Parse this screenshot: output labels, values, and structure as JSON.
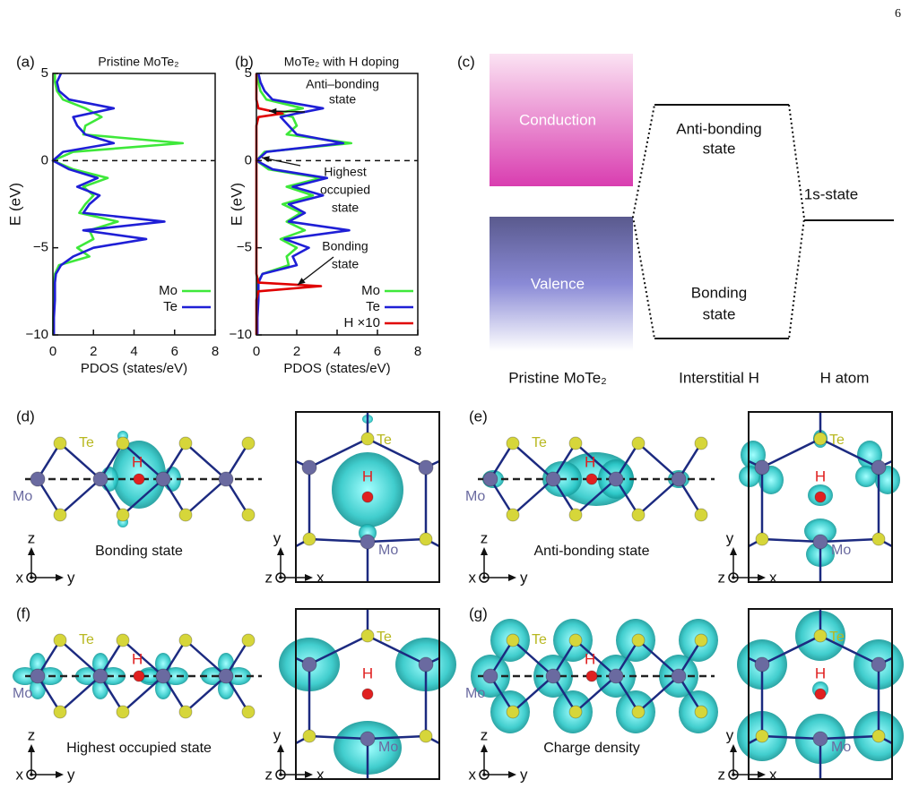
{
  "page_number": "6",
  "chart_data": [
    {
      "type": "line",
      "panel_label": "(a)",
      "title": "Pristine MoTe₂",
      "xlabel": "PDOS (states/eV)",
      "ylabel": "E (eV)",
      "y": [
        -10,
        -9,
        -8,
        -7,
        -6.5,
        -6,
        -5.5,
        -5,
        -4.5,
        -4,
        -3.5,
        -3,
        -2.5,
        -2,
        -1.5,
        -1,
        -0.5,
        0,
        0.5,
        1,
        1.5,
        2,
        2.5,
        3,
        3.5,
        4,
        4.5,
        5
      ],
      "series": [
        {
          "name": "Mo",
          "color": "#3ee83a",
          "values": [
            0.02,
            0.02,
            0.05,
            0.05,
            0.1,
            0.3,
            1.8,
            1.2,
            2.0,
            1.8,
            3.2,
            1.3,
            1.6,
            2.0,
            1.5,
            2.7,
            1.0,
            0,
            1.0,
            6.4,
            1.5,
            1.6,
            2.4,
            1.6,
            0.5,
            0.2,
            0.1,
            0.1
          ]
        },
        {
          "name": "Te",
          "color": "#1f1fd6",
          "values": [
            0.05,
            0.05,
            0.1,
            0.1,
            0.15,
            0.4,
            1.0,
            2.0,
            4.6,
            1.5,
            5.5,
            1.5,
            1.8,
            2.3,
            1.2,
            2.2,
            0.8,
            0,
            0.5,
            3.0,
            1.6,
            1.2,
            1.0,
            3.0,
            0.8,
            0.3,
            0.2,
            0.4
          ]
        }
      ],
      "xlim": [
        0,
        8
      ],
      "xticks": [
        0,
        2,
        4,
        6,
        8
      ],
      "ylim": [
        -10,
        5
      ],
      "yticks": [
        {
          "value": -10,
          "label": "−10"
        },
        {
          "value": -5,
          "label": "−5"
        },
        0,
        5
      ]
    },
    {
      "type": "line",
      "panel_label": "(b)",
      "title": "MoTe₂ with H doping",
      "xlabel": "PDOS (states/eV)",
      "ylabel": "E (eV)",
      "y": [
        -10,
        -9,
        -8,
        -7.5,
        -7.2,
        -7,
        -6.5,
        -6,
        -5.5,
        -5,
        -4.5,
        -4,
        -3.5,
        -3,
        -2.5,
        -2,
        -1.5,
        -1,
        -0.5,
        0,
        0.5,
        1,
        1.5,
        2,
        2.5,
        2.7,
        3,
        3.5,
        4,
        4.5,
        5
      ],
      "series": [
        {
          "name": "Mo",
          "color": "#3ee83a",
          "values": [
            0.02,
            0.02,
            0.05,
            0.05,
            0.05,
            0.05,
            0.3,
            1.6,
            1.5,
            2.0,
            1.2,
            2.4,
            1.5,
            2.2,
            1.3,
            2.8,
            1.5,
            3.2,
            0.6,
            0,
            0.4,
            4.7,
            1.5,
            2.0,
            1.8,
            1.0,
            2.3,
            0.5,
            0.2,
            0.1,
            0.05
          ]
        },
        {
          "name": "Te",
          "color": "#1f1fd6",
          "values": [
            0.05,
            0.05,
            0.1,
            0.1,
            0.1,
            0.1,
            0.3,
            2.0,
            1.8,
            2.6,
            1.4,
            4.6,
            1.6,
            2.4,
            1.6,
            3.3,
            1.8,
            3.5,
            0.8,
            0,
            0.5,
            4.3,
            2.0,
            1.6,
            1.2,
            2.0,
            3.3,
            0.8,
            0.4,
            0.2,
            0.1
          ]
        },
        {
          "name": "H ×10",
          "color": "#e00000",
          "values": [
            0,
            0,
            0,
            0.1,
            3.2,
            0.1,
            0,
            0,
            0,
            0,
            0,
            0,
            0,
            0,
            0,
            0,
            0,
            0,
            0,
            0,
            0,
            0,
            0,
            0,
            0.1,
            1.3,
            0.1,
            0,
            0,
            0,
            0
          ]
        }
      ],
      "annotations": [
        {
          "lines": [
            "Anti–bonding",
            "state"
          ]
        },
        {
          "lines": [
            "Highest",
            "occupied",
            "state"
          ]
        },
        {
          "lines": [
            "Bonding",
            "state"
          ]
        }
      ],
      "xlim": [
        0,
        8
      ],
      "xticks": [
        0,
        2,
        4,
        6,
        8
      ],
      "ylim": [
        -10,
        5
      ],
      "yticks": [
        {
          "value": -10,
          "label": "−10"
        },
        {
          "value": -5,
          "label": "−5"
        },
        0,
        5
      ]
    }
  ],
  "diagram": {
    "label": "(c)",
    "conduction": "Conduction",
    "valence": "Valence",
    "antibonding": [
      "Anti-bonding",
      "state"
    ],
    "bonding": [
      "Bonding",
      "state"
    ],
    "s_state": "1s-state",
    "columns": [
      "Pristine MoTe₂",
      "Interstitial H",
      "H atom"
    ]
  },
  "panels": [
    {
      "label": "(d)",
      "side": {
        "te": "Te",
        "h": "H",
        "mo": "Mo",
        "caption": "Bonding state",
        "axes": [
          "z",
          "x",
          "y"
        ]
      },
      "top": {
        "te": "Te",
        "h": "H",
        "mo": "Mo",
        "axes": [
          "y",
          "z",
          "x"
        ]
      }
    },
    {
      "label": "(e)",
      "side": {
        "te": "Te",
        "h": "H",
        "mo": "Mo",
        "caption": "Anti-bonding state",
        "axes": [
          "z",
          "x",
          "y"
        ]
      },
      "top": {
        "te": "Te",
        "h": "H",
        "mo": "Mo",
        "axes": [
          "y",
          "z",
          "x"
        ]
      }
    },
    {
      "label": "(f)",
      "side": {
        "te": "Te",
        "h": "H",
        "mo": "Mo",
        "caption": "Highest occupied state",
        "axes": [
          "z",
          "x",
          "y"
        ]
      },
      "top": {
        "te": "Te",
        "h": "H",
        "mo": "Mo",
        "axes": [
          "y",
          "z",
          "x"
        ]
      }
    },
    {
      "label": "(g)",
      "side": {
        "te": "Te",
        "h": "H",
        "mo": "Mo",
        "caption": "Charge density",
        "axes": [
          "z",
          "x",
          "y"
        ]
      },
      "top": {
        "te": "Te",
        "h": "H",
        "mo": "Mo",
        "axes": [
          "y",
          "z",
          "x"
        ]
      }
    }
  ]
}
